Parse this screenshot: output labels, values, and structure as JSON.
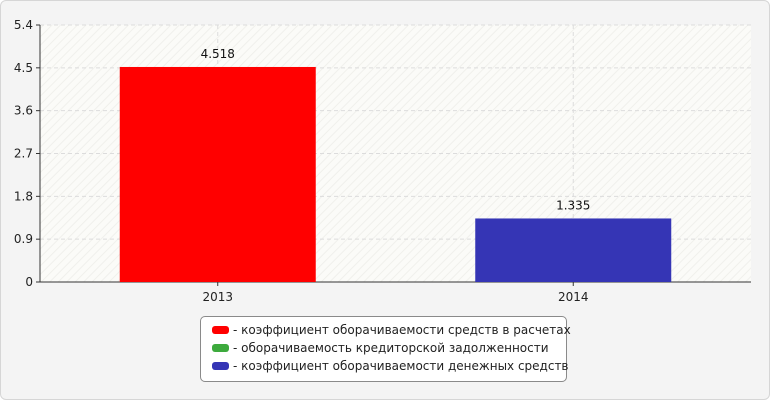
{
  "chart_data": {
    "type": "bar",
    "categories": [
      "2013",
      "2014"
    ],
    "series": [
      {
        "name": "коэффициент оборачиваемости средств в расчетах",
        "color": "#ff0000",
        "values": [
          4.518,
          null
        ]
      },
      {
        "name": "оборачиваемость кредиторской задолженности",
        "color": "#3daa3d",
        "values": [
          null,
          null
        ]
      },
      {
        "name": "коэффициент оборачиваемости денежных средств",
        "color": "#3535b5",
        "values": [
          null,
          1.335
        ]
      }
    ],
    "bars": [
      {
        "category": "2013",
        "series": "коэффициент оборачиваемости средств в расчетах",
        "value": 4.518,
        "label": "4.518",
        "color": "#ff0000"
      },
      {
        "category": "2014",
        "series": "коэффициент оборачиваемости денежных средств",
        "value": 1.335,
        "label": "1.335",
        "color": "#3535b5"
      }
    ],
    "y_ticks": [
      "0",
      "0.9",
      "1.8",
      "2.7",
      "3.6",
      "4.5",
      "5.4"
    ],
    "ylim": [
      0,
      5.4
    ],
    "title": "",
    "xlabel": "",
    "ylabel": "",
    "grid": true,
    "legend_position": "bottom-center"
  },
  "legend": {
    "items": [
      {
        "prefix": "- ",
        "label": "коэффициент оборачиваемости средств в расчетах",
        "color": "#ff0000"
      },
      {
        "prefix": "- ",
        "label": "оборачиваемость кредиторской задолженности",
        "color": "#3daa3d"
      },
      {
        "prefix": "- ",
        "label": "коэффициент оборачиваемости денежных средств",
        "color": "#3535b5"
      }
    ]
  }
}
